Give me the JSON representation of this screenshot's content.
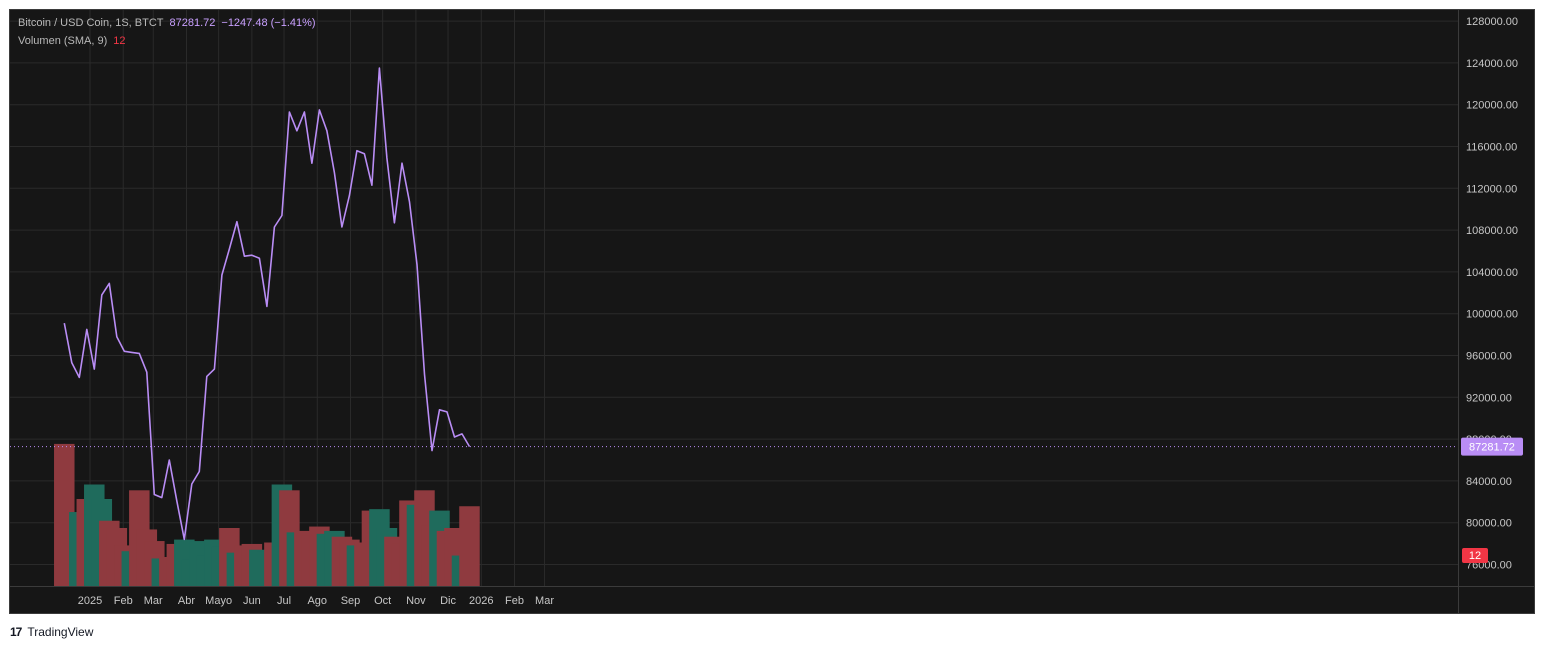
{
  "legend": {
    "symbol": "Bitcoin / USD Coin, 1S, BTCT",
    "last_price": "87281.72",
    "change": "−1247.48 (−1.41%)",
    "volume_label": "Volumen (SMA, 9)",
    "volume_value": "12"
  },
  "footer": {
    "brand": "TradingView",
    "logo_glyph": "17"
  },
  "colors": {
    "background": "#161616",
    "grid": "#2a2a2a",
    "line": "#b98df5",
    "volume_up": "#1f6b5c",
    "volume_down": "#8f3a3f",
    "price_tag": "#b98df5",
    "volume_tag": "#f23645"
  },
  "chart_data": {
    "type": "line",
    "symbol": "Bitcoin / USD Coin",
    "interval": "1S",
    "exchange": "BTCT",
    "x_tick_labels": [
      "2025",
      "Feb",
      "Mar",
      "Abr",
      "Mayo",
      "Jun",
      "Jul",
      "Ago",
      "Sep",
      "Oct",
      "Nov",
      "Dic",
      "2026",
      "Feb",
      "Mar"
    ],
    "y_tick_labels": [
      "76000.00",
      "80000.00",
      "84000.00",
      "88000.00",
      "92000.00",
      "96000.00",
      "100000.00",
      "104000.00",
      "108000.00",
      "112000.00",
      "116000.00",
      "120000.00",
      "124000.00",
      "128000.00"
    ],
    "y_ticks": [
      76000,
      80000,
      84000,
      88000,
      92000,
      96000,
      100000,
      104000,
      108000,
      112000,
      116000,
      120000,
      124000,
      128000
    ],
    "ylim": [
      74000,
      129000
    ],
    "grid": true,
    "current_price": 87281.72,
    "current_price_label": "87281.72",
    "volume_current_label": "12",
    "price_series": {
      "name": "Bitcoin / USD Coin",
      "x": [
        "2024-12-08",
        "2024-12-15",
        "2024-12-22",
        "2024-12-29",
        "2025-01-05",
        "2025-01-12",
        "2025-01-19",
        "2025-01-26",
        "2025-02-02",
        "2025-02-09",
        "2025-02-16",
        "2025-02-23",
        "2025-03-02",
        "2025-03-09",
        "2025-03-16",
        "2025-03-23",
        "2025-03-30",
        "2025-04-06",
        "2025-04-13",
        "2025-04-20",
        "2025-04-27",
        "2025-05-04",
        "2025-05-11",
        "2025-05-18",
        "2025-05-25",
        "2025-06-01",
        "2025-06-08",
        "2025-06-15",
        "2025-06-22",
        "2025-06-29",
        "2025-07-06",
        "2025-07-13",
        "2025-07-20",
        "2025-07-27",
        "2025-08-03",
        "2025-08-10",
        "2025-08-17",
        "2025-08-24",
        "2025-08-31",
        "2025-09-07",
        "2025-09-14",
        "2025-09-21",
        "2025-09-28",
        "2025-10-05",
        "2025-10-12",
        "2025-10-19",
        "2025-10-26",
        "2025-11-02",
        "2025-11-09",
        "2025-11-16",
        "2025-11-23",
        "2025-11-30",
        "2025-12-07",
        "2025-12-14",
        "2025-12-21"
      ],
      "values": [
        99100,
        95300,
        93900,
        98500,
        94700,
        101800,
        102900,
        97800,
        96400,
        96300,
        96200,
        94400,
        82700,
        82400,
        86000,
        82100,
        78400,
        83700,
        84900,
        94000,
        94700,
        103700,
        106200,
        108800,
        105500,
        105600,
        105300,
        100700,
        108300,
        109400,
        119300,
        117500,
        119300,
        114400,
        119500,
        117500,
        113500,
        108300,
        111300,
        115600,
        115300,
        112300,
        123500,
        114900,
        108700,
        114400,
        110700,
        104700,
        94200,
        86900,
        90800,
        90600,
        88200,
        88500,
        87282
      ]
    },
    "volume_series": {
      "name": "Volumen",
      "up": [
        false,
        false,
        true,
        false,
        true,
        true,
        false,
        false,
        false,
        true,
        false,
        false,
        false,
        true,
        false,
        false,
        true,
        true,
        true,
        true,
        true,
        true,
        false,
        true,
        false,
        false,
        true,
        true,
        false,
        true,
        false,
        true,
        false,
        false,
        false,
        true,
        true,
        false,
        false,
        true,
        false,
        false,
        true,
        true,
        false,
        false,
        false,
        true,
        false,
        false,
        true,
        false,
        false,
        true,
        false
      ],
      "relative": [
        0.98,
        0.45,
        0.51,
        0.6,
        0.7,
        0.6,
        0.45,
        0.4,
        0.28,
        0.24,
        0.66,
        0.39,
        0.31,
        0.19,
        0.2,
        0.29,
        0.32,
        0.18,
        0.31,
        0.21,
        0.32,
        0.27,
        0.4,
        0.23,
        0.28,
        0.29,
        0.25,
        0.24,
        0.3,
        0.7,
        0.66,
        0.37,
        0.38,
        0.35,
        0.41,
        0.36,
        0.38,
        0.34,
        0.32,
        0.28,
        0.3,
        0.52,
        0.53,
        0.4,
        0.34,
        0.29,
        0.59,
        0.56,
        0.66,
        0.42,
        0.52,
        0.38,
        0.4,
        0.21,
        0.55
      ]
    }
  }
}
